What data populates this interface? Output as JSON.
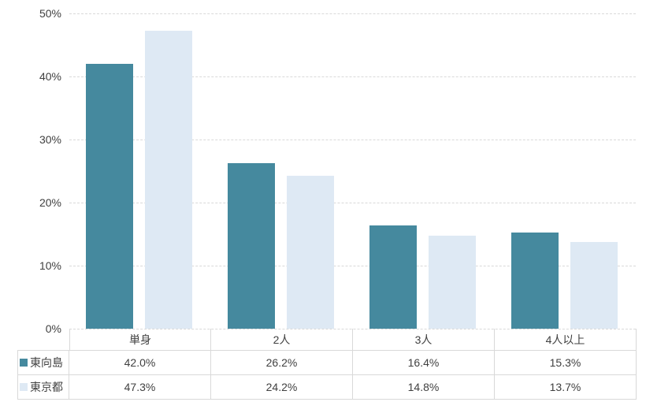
{
  "chart_data": {
    "type": "bar",
    "title": "",
    "xlabel": "",
    "ylabel": "",
    "categories": [
      "単身",
      "2人",
      "3人",
      "4人以上"
    ],
    "series": [
      {
        "name": "東向島",
        "color": "#45899E",
        "values": [
          42.0,
          26.2,
          16.4,
          15.3
        ],
        "value_labels": [
          "42.0%",
          "26.2%",
          "16.4%",
          "15.3%"
        ]
      },
      {
        "name": "東京都",
        "color": "#DEE9F4",
        "values": [
          47.3,
          24.2,
          14.8,
          13.7
        ],
        "value_labels": [
          "47.3%",
          "24.2%",
          "14.8%",
          "13.7%"
        ]
      }
    ],
    "ylim": [
      0,
      50
    ],
    "y_ticks": [
      {
        "value": 0,
        "label": "0%"
      },
      {
        "value": 10,
        "label": "10%"
      },
      {
        "value": 20,
        "label": "20%"
      },
      {
        "value": 30,
        "label": "30%"
      },
      {
        "value": 40,
        "label": "40%"
      },
      {
        "value": 50,
        "label": "50%"
      }
    ],
    "grid": "horizontal-dashed",
    "legend_position": "data-table-left-column"
  },
  "style": {
    "background_color": "#FFFFFF",
    "gridline_color": "#D9D9D9",
    "axis_line_color": "#D9D9D9",
    "table_border_color": "#D9D9D9",
    "text_color": "#404040"
  }
}
